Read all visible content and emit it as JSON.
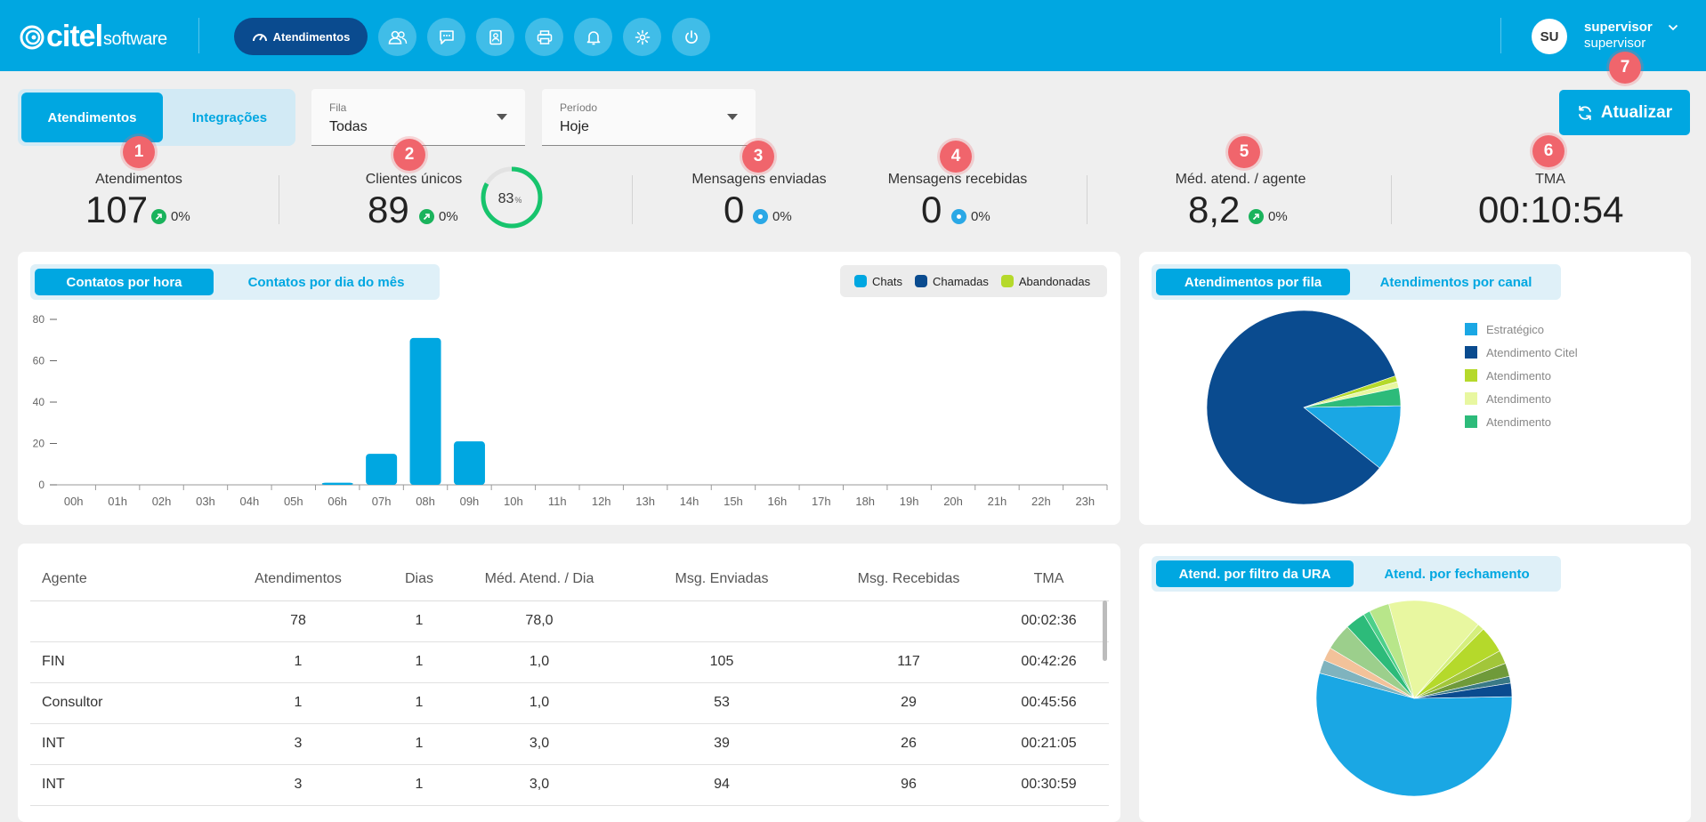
{
  "brand": {
    "name": "citel",
    "sub": "software"
  },
  "nav": {
    "active_label": "Atendimentos",
    "icons": [
      "users-icon",
      "chat-icon",
      "contacts-icon",
      "printer-icon",
      "bell-icon",
      "gear-icon",
      "power-icon"
    ]
  },
  "user": {
    "initials": "SU",
    "name": "supervisor",
    "role": "supervisor"
  },
  "tabs": {
    "main_active": "Atendimentos",
    "main_other": "Integrações"
  },
  "filters": {
    "queue": {
      "label": "Fila",
      "value": "Todas"
    },
    "period": {
      "label": "Período",
      "value": "Hoje"
    }
  },
  "refresh_label": "Atualizar",
  "badges": [
    "1",
    "2",
    "3",
    "4",
    "5",
    "6",
    "7"
  ],
  "kpis": {
    "atendimentos": {
      "label": "Atendimentos",
      "value": "107",
      "delta": "0%"
    },
    "clientes": {
      "label": "Clientes únicos",
      "value": "89",
      "delta": "0%",
      "gauge_value": "83",
      "gauge_unit": "%",
      "gauge_fraction": 0.83
    },
    "enviadas": {
      "label": "Mensagens enviadas",
      "value": "0",
      "delta": "0%"
    },
    "recebidas": {
      "label": "Mensagens recebidas",
      "value": "0",
      "delta": "0%"
    },
    "media": {
      "label": "Méd. atend. / agente",
      "value": "8,2",
      "delta": "0%"
    },
    "tma": {
      "label": "TMA",
      "value": "00:10:54"
    }
  },
  "hourly_panel": {
    "tab_active": "Contatos por hora",
    "tab_other": "Contatos por dia do mês",
    "legend": [
      {
        "name": "Chats",
        "color": "#00a7e1"
      },
      {
        "name": "Chamadas",
        "color": "#0a4b8f"
      },
      {
        "name": "Abandonadas",
        "color": "#b5d92b"
      }
    ]
  },
  "queue_panel": {
    "tab_active": "Atendimentos por fila",
    "tab_other": "Atendimentos por canal",
    "legend": [
      {
        "name": "Estratégico",
        "color": "#1aa7e4"
      },
      {
        "name": "Atendimento Citel",
        "color": "#0a4b8f"
      },
      {
        "name": "Atendimento",
        "color": "#b5d92b"
      },
      {
        "name": "Atendimento",
        "color": "#e8f7a0"
      },
      {
        "name": "Atendimento",
        "color": "#2dbb7a"
      }
    ]
  },
  "ura_panel": {
    "tab_active": "Atend. por filtro da URA",
    "tab_other": "Atend. por fechamento"
  },
  "table": {
    "headers": [
      "Agente",
      "Atendimentos",
      "Dias",
      "Méd. Atend. / Dia",
      "Msg. Enviadas",
      "Msg. Recebidas",
      "TMA"
    ],
    "rows": [
      [
        "",
        "78",
        "1",
        "78,0",
        "",
        "",
        "00:02:36"
      ],
      [
        "FIN",
        "1",
        "1",
        "1,0",
        "105",
        "117",
        "00:42:26"
      ],
      [
        "Consultor",
        "1",
        "1",
        "1,0",
        "53",
        "29",
        "00:45:56"
      ],
      [
        "INT",
        "3",
        "1",
        "3,0",
        "39",
        "26",
        "00:21:05"
      ],
      [
        "INT",
        "3",
        "1",
        "3,0",
        "94",
        "96",
        "00:30:59"
      ]
    ]
  },
  "chart_data": [
    {
      "type": "bar",
      "title": "Contatos por hora",
      "categories": [
        "00h",
        "01h",
        "02h",
        "03h",
        "04h",
        "05h",
        "06h",
        "07h",
        "08h",
        "09h",
        "10h",
        "11h",
        "12h",
        "13h",
        "14h",
        "15h",
        "16h",
        "17h",
        "18h",
        "19h",
        "20h",
        "21h",
        "22h",
        "23h"
      ],
      "series": [
        {
          "name": "Chats",
          "color": "#00a7e1",
          "values": [
            0,
            0,
            0,
            0,
            0,
            0,
            1,
            15,
            71,
            21,
            0,
            0,
            0,
            0,
            0,
            0,
            0,
            0,
            0,
            0,
            0,
            0,
            0,
            0
          ]
        }
      ],
      "ylim": [
        0,
        80
      ],
      "yticks": [
        0,
        20,
        40,
        60,
        80
      ],
      "grid": false
    },
    {
      "type": "pie",
      "title": "Atendimentos por fila",
      "slices": [
        {
          "label": "Estratégico",
          "value": 11,
          "color": "#1aa7e4"
        },
        {
          "label": "Atendimento Citel",
          "value": 84,
          "color": "#0a4b8f"
        },
        {
          "label": "Atendimento",
          "value": 1,
          "color": "#b5d92b"
        },
        {
          "label": "Atendimento",
          "value": 1,
          "color": "#e8f7a0"
        },
        {
          "label": "Atendimento",
          "value": 3,
          "color": "#2dbb7a"
        }
      ]
    },
    {
      "type": "pie",
      "title": "Atend. por filtro da URA",
      "slices": [
        {
          "value": 49,
          "color": "#1aa7e4"
        },
        {
          "value": 2,
          "color": "#7fb3be"
        },
        {
          "value": 2,
          "color": "#f2c29a"
        },
        {
          "value": 4,
          "color": "#9ccf8c"
        },
        {
          "value": 3,
          "color": "#2dbb7a"
        },
        {
          "value": 1,
          "color": "#4cd08a"
        },
        {
          "value": 3,
          "color": "#b8e68a"
        },
        {
          "value": 14,
          "color": "#e8f7a0"
        },
        {
          "value": 1,
          "color": "#d5ef7d"
        },
        {
          "value": 4,
          "color": "#b5d92b"
        },
        {
          "value": 2,
          "color": "#a2c63a"
        },
        {
          "value": 2,
          "color": "#6f9a3a"
        },
        {
          "value": 1,
          "color": "#3a7a86"
        },
        {
          "value": 2,
          "color": "#0a4b8f"
        }
      ]
    }
  ]
}
